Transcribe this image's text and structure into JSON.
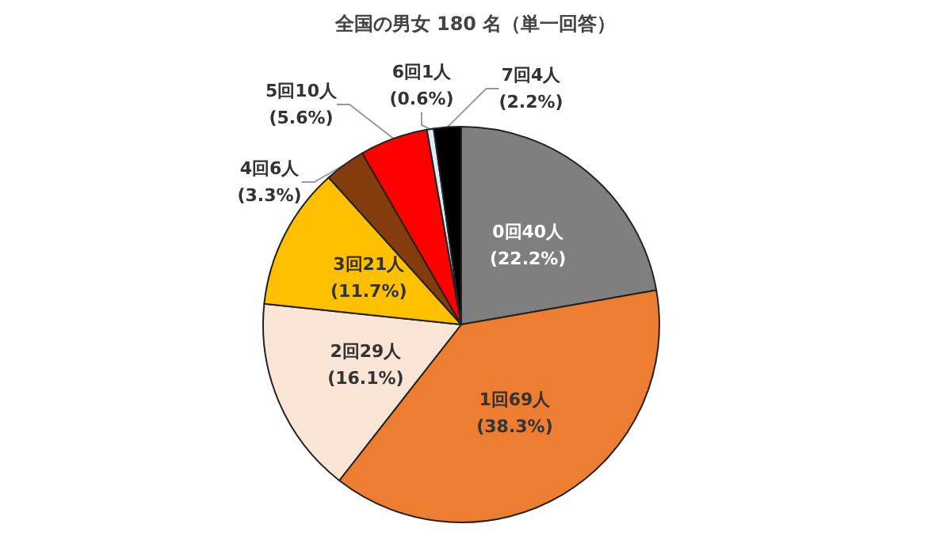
{
  "chart_data": {
    "type": "pie",
    "title": "全国の男女 180 名（単一回答）",
    "categories": [
      "0回",
      "1回",
      "2回",
      "3回",
      "4回",
      "5回",
      "6回",
      "7回"
    ],
    "values": [
      40,
      69,
      29,
      21,
      6,
      10,
      1,
      4
    ],
    "colors": [
      "#7f7f7f",
      "#ed7d31",
      "#fbe5d6",
      "#ffc000",
      "#843c0c",
      "#ff0000",
      "#ddebf7",
      "#000000"
    ],
    "value_labels": [
      "40人\n(22.2%)",
      "69人\n(38.3%)",
      "29人\n(16.1%)",
      "21人\n(11.7%)",
      "6人\n(3.3%)",
      "10人\n(5.6%)",
      "1人\n(0.6%)",
      "4人\n(2.2%)"
    ],
    "legend": false
  }
}
